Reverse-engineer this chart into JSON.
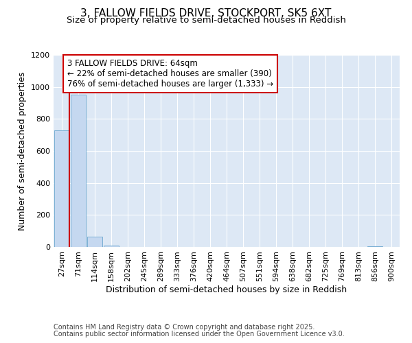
{
  "title": "3, FALLOW FIELDS DRIVE, STOCKPORT, SK5 6XT",
  "subtitle": "Size of property relative to semi-detached houses in Reddish",
  "xlabel": "Distribution of semi-detached houses by size in Reddish",
  "ylabel": "Number of semi-detached properties",
  "bar_labels": [
    "27sqm",
    "71sqm",
    "114sqm",
    "158sqm",
    "202sqm",
    "245sqm",
    "289sqm",
    "333sqm",
    "376sqm",
    "420sqm",
    "464sqm",
    "507sqm",
    "551sqm",
    "594sqm",
    "638sqm",
    "682sqm",
    "725sqm",
    "769sqm",
    "813sqm",
    "856sqm",
    "900sqm"
  ],
  "bar_values": [
    730,
    950,
    65,
    10,
    0,
    0,
    0,
    0,
    0,
    0,
    0,
    0,
    0,
    0,
    0,
    0,
    0,
    0,
    0,
    5,
    0
  ],
  "bar_color": "#c5d8f0",
  "bar_edge_color": "#7aafd4",
  "property_line_color": "#cc0000",
  "annotation_title": "3 FALLOW FIELDS DRIVE: 64sqm",
  "annotation_line1": "← 22% of semi-detached houses are smaller (390)",
  "annotation_line2": "76% of semi-detached houses are larger (1,333) →",
  "annotation_box_color": "#cc0000",
  "ylim": [
    0,
    1200
  ],
  "yticks": [
    0,
    200,
    400,
    600,
    800,
    1000,
    1200
  ],
  "footnote1": "Contains HM Land Registry data © Crown copyright and database right 2025.",
  "footnote2": "Contains public sector information licensed under the Open Government Licence v3.0.",
  "fig_bg_color": "#ffffff",
  "plot_bg_color": "#dde8f5",
  "grid_color": "#ffffff",
  "title_fontsize": 11,
  "subtitle_fontsize": 9.5,
  "axis_label_fontsize": 9,
  "tick_fontsize": 8,
  "annotation_fontsize": 8.5,
  "footnote_fontsize": 7
}
